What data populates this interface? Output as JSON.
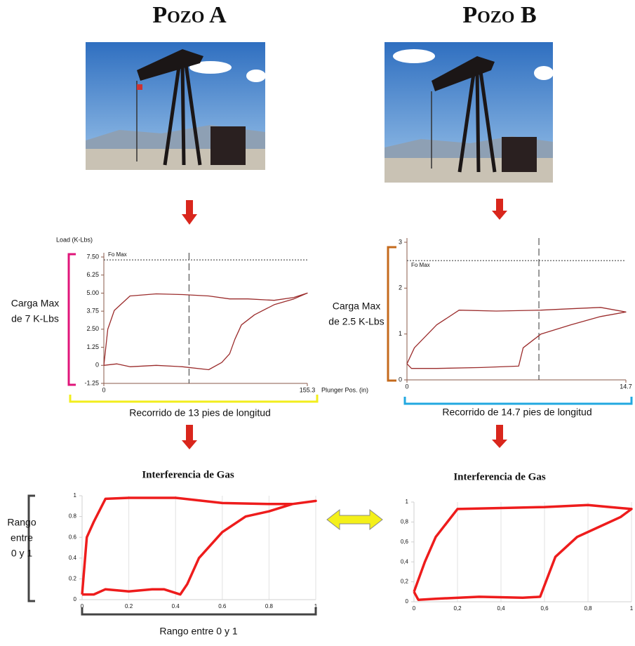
{
  "wells": [
    {
      "title": "Pozo A",
      "card": {
        "y_axis_label": "Load (K-Lbs)",
        "x_axis_label": "Plunger Pos. (in)",
        "fo_max_label": "Fo Max",
        "fo_max": 7.3,
        "ylim": [
          -1.25,
          7.5
        ],
        "yticks": [
          {
            "value": 7.5,
            "label": "7.50"
          },
          {
            "value": 6.25,
            "label": "6.25"
          },
          {
            "value": 5,
            "label": "5.00"
          },
          {
            "value": 3.75,
            "label": "3.75"
          },
          {
            "value": 2.5,
            "label": "2.50"
          },
          {
            "value": 1.25,
            "label": "1.25"
          },
          0,
          {
            "value": -1.25,
            "label": "-1.25"
          }
        ],
        "xlim": [
          0,
          155.3
        ],
        "xticks": [
          0,
          155.3
        ],
        "marker_x": 65,
        "x": [
          0,
          3,
          8,
          20,
          40,
          60,
          80,
          96,
          110,
          130,
          145,
          155.3,
          145,
          130,
          115,
          105,
          100,
          96,
          90,
          80,
          60,
          40,
          20,
          10,
          0
        ],
        "y": [
          0,
          2.5,
          3.8,
          4.8,
          4.95,
          4.9,
          4.8,
          4.6,
          4.6,
          4.5,
          4.7,
          5.0,
          4.6,
          4.2,
          3.5,
          2.8,
          1.8,
          0.8,
          0.2,
          -0.3,
          -0.1,
          0,
          -0.1,
          0.1,
          0
        ]
      },
      "load_annotation": [
        "Carga Max",
        "de 7 K-Lbs"
      ],
      "stroke_annotation": "Recorrido de 13 pies de longitud",
      "normalized": {
        "title": "Interferencia de Gas",
        "xlim": [
          0,
          1
        ],
        "ylim": [
          0,
          1
        ],
        "xticks": [
          0,
          0.2,
          0.4,
          0.6,
          0.8,
          1
        ],
        "yticks": [
          0,
          0.2,
          0.4,
          0.6,
          0.8,
          1
        ],
        "x": [
          0,
          0.02,
          0.05,
          0.1,
          0.2,
          0.4,
          0.6,
          0.8,
          0.9,
          1,
          0.9,
          0.8,
          0.7,
          0.6,
          0.5,
          0.45,
          0.42,
          0.35,
          0.3,
          0.2,
          0.1,
          0.05,
          0
        ],
        "y": [
          0.05,
          0.6,
          0.75,
          0.97,
          0.98,
          0.98,
          0.93,
          0.92,
          0.92,
          0.95,
          0.92,
          0.85,
          0.8,
          0.65,
          0.4,
          0.15,
          0.05,
          0.1,
          0.1,
          0.08,
          0.1,
          0.05,
          0.05
        ]
      }
    },
    {
      "title": "Pozo B",
      "card": {
        "fo_max_label": "Fo Max",
        "fo_max": 2.6,
        "ylim": [
          0,
          3
        ],
        "yticks": [
          0,
          1,
          2,
          3
        ],
        "xlim": [
          0,
          14.7
        ],
        "xticks": [
          0,
          14.7
        ],
        "marker_x": 8.86,
        "x": [
          0,
          0.5,
          2,
          3.5,
          6,
          9,
          11,
          13,
          14.7,
          13,
          11,
          9,
          7.8,
          7.5,
          5,
          2,
          0.3,
          0
        ],
        "y": [
          0.35,
          0.7,
          1.2,
          1.52,
          1.5,
          1.52,
          1.55,
          1.58,
          1.48,
          1.38,
          1.2,
          1.0,
          0.7,
          0.3,
          0.27,
          0.25,
          0.25,
          0.35
        ]
      },
      "load_annotation": [
        "Carga Max",
        "de 2.5 K-Lbs"
      ],
      "stroke_annotation": "Recorrido de 14.7 pies de longitud",
      "normalized": {
        "title": "Interferencia de Gas",
        "xlim": [
          0,
          1
        ],
        "ylim": [
          0,
          1
        ],
        "xticks": [
          0,
          {
            "value": 0.2,
            "label": "0,2"
          },
          {
            "value": 0.4,
            "label": "0,4"
          },
          {
            "value": 0.6,
            "label": "0,6"
          },
          {
            "value": 0.8,
            "label": "0,8"
          },
          1
        ],
        "yticks": [
          0,
          {
            "value": 0.2,
            "label": "0,2"
          },
          {
            "value": 0.4,
            "label": "0,4"
          },
          {
            "value": 0.6,
            "label": "0,6"
          },
          {
            "value": 0.8,
            "label": "0,8"
          },
          1
        ],
        "x": [
          0,
          0.05,
          0.1,
          0.2,
          0.4,
          0.6,
          0.8,
          0.9,
          1,
          0.95,
          0.85,
          0.75,
          0.65,
          0.58,
          0.5,
          0.3,
          0.1,
          0.02,
          0
        ],
        "y": [
          0.1,
          0.4,
          0.65,
          0.93,
          0.94,
          0.95,
          0.97,
          0.95,
          0.93,
          0.85,
          0.75,
          0.65,
          0.45,
          0.05,
          0.04,
          0.05,
          0.03,
          0.02,
          0.1
        ]
      }
    }
  ],
  "range_y_label": [
    "Rango",
    "entre",
    "0 y 1"
  ],
  "range_x_label": "Rango entre 0 y 1"
}
